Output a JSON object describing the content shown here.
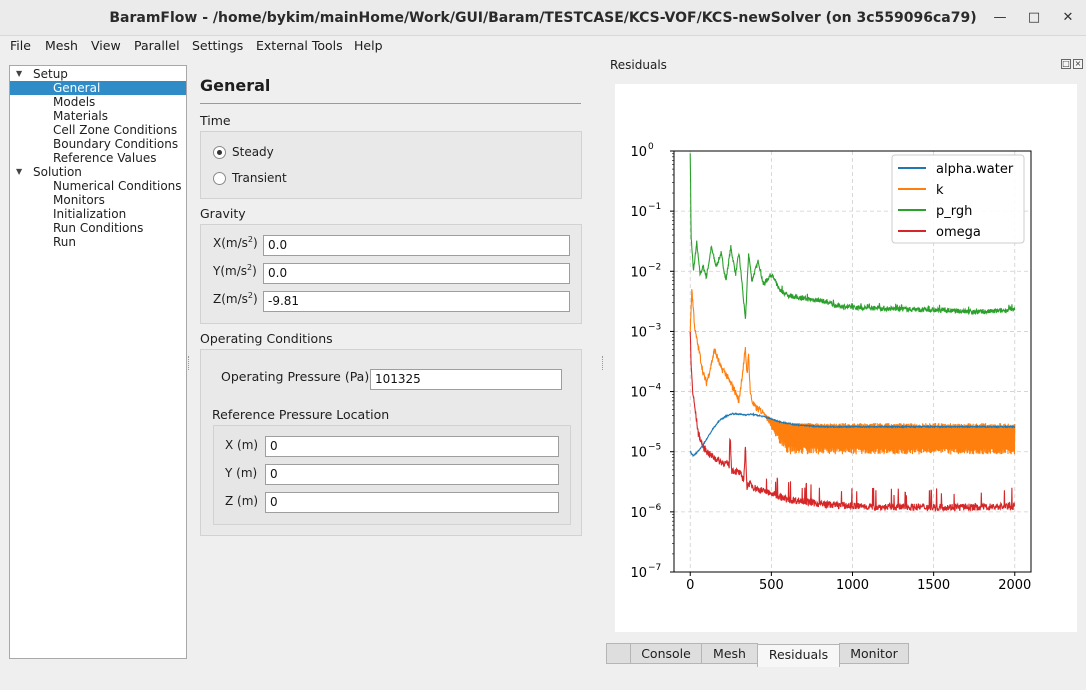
{
  "window": {
    "title": "BaramFlow - /home/bykim/mainHome/Work/GUI/Baram/TESTCASE/KCS-VOF/KCS-newSolver (on 3c559096ca79)",
    "minimize_icon": "minimize-icon",
    "maximize_icon": "maximize-icon",
    "close_icon": "close-icon"
  },
  "menu": [
    "File",
    "Mesh",
    "View",
    "Parallel",
    "Settings",
    "External Tools",
    "Help"
  ],
  "tree": {
    "setup": "Setup",
    "setup_items": [
      "General",
      "Models",
      "Materials",
      "Cell Zone Conditions",
      "Boundary Conditions",
      "Reference Values"
    ],
    "solution": "Solution",
    "solution_items": [
      "Numerical Conditions",
      "Monitors",
      "Initialization",
      "Run Conditions",
      "Run"
    ],
    "selected": "General"
  },
  "general": {
    "title": "General",
    "time_label": "Time",
    "steady": "Steady",
    "transient": "Transient",
    "time_selected": "Steady",
    "gravity_label": "Gravity",
    "gx_label": "X(m/s",
    "gy_label": "Y(m/s",
    "gz_label": "Z(m/s",
    "gravity_unit_exp": "2",
    "gx": "0.0",
    "gy": "0.0",
    "gz": "-9.81",
    "operating_label": "Operating Conditions",
    "op_pressure_label": "Operating Pressure (Pa)",
    "op_pressure": "101325",
    "ref_location_label": "Reference Pressure Location",
    "rx_label": "X (m)",
    "ry_label": "Y (m)",
    "rz_label": "Z (m)",
    "rx": "0",
    "ry": "0",
    "rz": "0"
  },
  "dock": {
    "title": "Residuals",
    "tabs": [
      "",
      "Console",
      "Mesh",
      "Residuals",
      "Monitor"
    ],
    "active_tab": "Residuals"
  },
  "chart_data": {
    "type": "line",
    "title": "",
    "xlabel": "",
    "ylabel": "",
    "xlim": [
      -100,
      2100
    ],
    "ylim": [
      1e-07,
      1
    ],
    "yscale": "log",
    "x_ticks": [
      0,
      500,
      1000,
      1500,
      2000
    ],
    "y_ticks": [
      {
        "base": "10",
        "exp": "0"
      },
      {
        "base": "10",
        "exp": "−1"
      },
      {
        "base": "10",
        "exp": "−2"
      },
      {
        "base": "10",
        "exp": "−3"
      },
      {
        "base": "10",
        "exp": "−4"
      },
      {
        "base": "10",
        "exp": "−5"
      },
      {
        "base": "10",
        "exp": "−6"
      },
      {
        "base": "10",
        "exp": "−7"
      }
    ],
    "grid": true,
    "legend_position": "top-right",
    "series": [
      {
        "name": "alpha.water",
        "color": "#1f77b4",
        "x": [
          0,
          20,
          60,
          100,
          140,
          180,
          220,
          260,
          300,
          340,
          380,
          420,
          460,
          500,
          560,
          650,
          800,
          1000,
          1500,
          2000
        ],
        "y": [
          1e-05,
          8.5e-06,
          1.1e-05,
          1.6e-05,
          2.4e-05,
          3.3e-05,
          3.9e-05,
          4.3e-05,
          4.2e-05,
          4.1e-05,
          4.2e-05,
          4e-05,
          3.8e-05,
          3.5e-05,
          3.1e-05,
          2.8e-05,
          2.6e-05,
          2.6e-05,
          2.6e-05,
          2.6e-05
        ]
      },
      {
        "name": "k",
        "color": "#ff7f0e",
        "x": [
          0,
          10,
          30,
          60,
          80,
          100,
          120,
          150,
          170,
          190,
          210,
          240,
          270,
          300,
          330,
          340,
          350,
          360,
          370,
          380,
          400,
          450,
          500,
          600,
          800,
          1000,
          1500,
          2000
        ],
        "y": [
          0.001,
          0.005,
          0.001,
          0.0004,
          0.0002,
          0.00014,
          0.00022,
          0.0005,
          0.00035,
          0.00024,
          0.00022,
          0.00015,
          0.00011,
          7e-05,
          0.0003,
          0.0005,
          0.0002,
          0.0004,
          0.0001,
          7e-05,
          5.5e-05,
          4.5e-05,
          3.8e-05,
          2.8e-05,
          2.2e-05,
          2e-05,
          1.9e-05,
          1.9e-05
        ],
        "noise_band_from_x": 450,
        "noise_band_low": 9e-06,
        "noise_band_high": 3e-05
      },
      {
        "name": "p_rgh",
        "color": "#2ca02c",
        "x": [
          0,
          5,
          20,
          40,
          60,
          80,
          100,
          130,
          160,
          190,
          220,
          250,
          280,
          300,
          320,
          340,
          360,
          380,
          420,
          450,
          500,
          550,
          600,
          700,
          800,
          900,
          1000,
          1200,
          1400,
          1600,
          1800,
          2000
        ],
        "y": [
          1.0,
          0.04,
          0.01,
          0.03,
          0.009,
          0.012,
          0.008,
          0.025,
          0.012,
          0.02,
          0.007,
          0.025,
          0.009,
          0.02,
          0.006,
          0.0015,
          0.02,
          0.007,
          0.015,
          0.006,
          0.009,
          0.005,
          0.004,
          0.0035,
          0.0033,
          0.0027,
          0.0025,
          0.0024,
          0.0023,
          0.0022,
          0.0021,
          0.0023
        ]
      },
      {
        "name": "omega",
        "color": "#d62728",
        "x": [
          0,
          5,
          15,
          30,
          50,
          80,
          120,
          180,
          240,
          245,
          255,
          300,
          330,
          340,
          350,
          360,
          400,
          450,
          500,
          600,
          700,
          800,
          900,
          1000,
          1200,
          1500,
          1800,
          2000
        ],
        "y": [
          0.001,
          0.0003,
          0.0001,
          5e-05,
          2e-05,
          1.2e-05,
          9e-06,
          7e-06,
          6e-06,
          2e-05,
          5e-06,
          4.5e-06,
          3.5e-06,
          1.2e-05,
          2.5e-06,
          3e-06,
          2.5e-06,
          2.2e-06,
          2e-06,
          1.6e-06,
          1.5e-06,
          1.35e-06,
          1.3e-06,
          1.25e-06,
          1.2e-06,
          1.2e-06,
          1.2e-06,
          1.25e-06
        ]
      }
    ]
  }
}
